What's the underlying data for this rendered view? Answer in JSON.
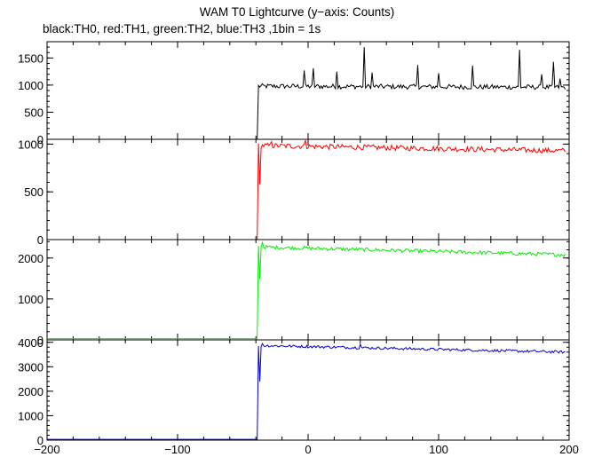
{
  "chart_data": {
    "type": "line",
    "title": "WAM T0 Lightcurve (y−axis: Counts)",
    "subtitle": "black:TH0, red:TH1, green:TH2, blue:TH3 ,1bin = 1s",
    "xlim": [
      -200,
      200
    ],
    "x_ticks": [
      -200,
      -100,
      0,
      100,
      200
    ],
    "x_tick_labels": [
      "−200",
      "−100",
      "0",
      "100",
      "200"
    ],
    "trigger_time": -38,
    "panels": [
      {
        "series": "TH0",
        "color": "#000000",
        "ylim": [
          0,
          1800
        ],
        "y_ticks": [
          0,
          500,
          1000,
          1500
        ],
        "y_tick_labels": [
          "0",
          "500",
          "1000",
          "1500"
        ],
        "pre_level": 0,
        "post_start_level": 980,
        "post_end_level": 960,
        "noise": 45,
        "spikes": [
          [
            -3,
            1270
          ],
          [
            4,
            1310
          ],
          [
            22,
            1250
          ],
          [
            43,
            1700
          ],
          [
            49,
            1230
          ],
          [
            84,
            1370
          ],
          [
            100,
            1220
          ],
          [
            126,
            1360
          ],
          [
            162,
            1650
          ],
          [
            179,
            1200
          ],
          [
            188,
            1430
          ],
          [
            193,
            1120
          ]
        ]
      },
      {
        "series": "TH1",
        "color": "#ff0000",
        "ylim": [
          0,
          1050
        ],
        "y_ticks": [
          0,
          500,
          1000
        ],
        "y_tick_labels": [
          "0",
          "500",
          "1000"
        ],
        "pre_level": 0,
        "post_start_level": 985,
        "post_end_level": 930,
        "noise": 28,
        "spikes": [
          [
            -37,
            580
          ],
          [
            -2,
            1040
          ],
          [
            -28,
            1025
          ]
        ]
      },
      {
        "series": "TH2",
        "color": "#00ee00",
        "ylim": [
          0,
          2450
        ],
        "y_ticks": [
          0,
          1000,
          2000
        ],
        "y_tick_labels": [
          "0",
          "1000",
          "2000"
        ],
        "pre_level": 30,
        "post_start_level": 2270,
        "post_end_level": 2080,
        "noise": 45,
        "spikes": [
          [
            -37,
            1480
          ],
          [
            -35,
            2380
          ]
        ]
      },
      {
        "series": "TH3",
        "color": "#0000cc",
        "ylim": [
          0,
          4100
        ],
        "y_ticks": [
          0,
          1000,
          2000,
          3000,
          4000
        ],
        "y_tick_labels": [
          "0",
          "1000",
          "2000",
          "3000",
          "4000"
        ],
        "pre_level": 30,
        "post_start_level": 3870,
        "post_end_level": 3600,
        "noise": 55,
        "spikes": [
          [
            -37,
            2400
          ],
          [
            -35,
            3950
          ],
          [
            40,
            3920
          ]
        ]
      }
    ]
  }
}
